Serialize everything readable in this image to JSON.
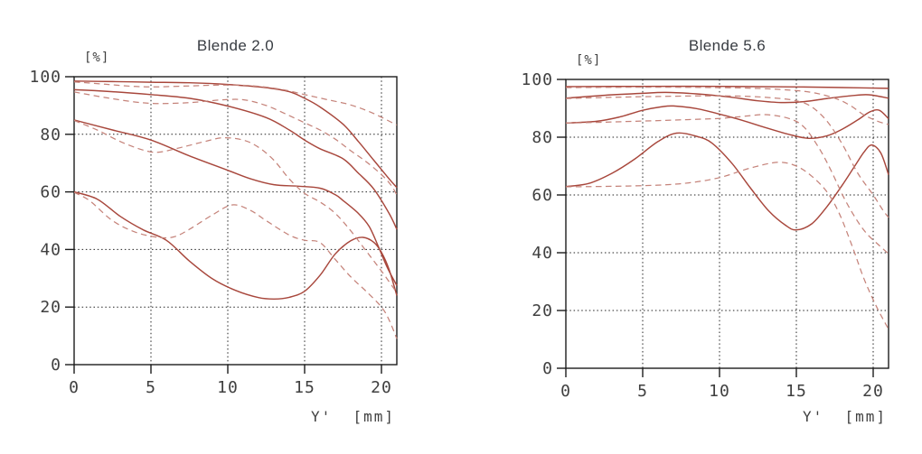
{
  "figure_name": "MTF diagrams",
  "colors": {
    "background": "#ffffff",
    "curve_solid": "#a8473c",
    "curve_dashed": "#c5837a",
    "axis": "#1c1c1c",
    "grid": "#222222",
    "tick_text": "#3f3f3f",
    "title_text": "#383c42"
  },
  "chart_data": [
    {
      "type": "line",
      "title": "Blende 2.0",
      "ylabel": "[%]",
      "xlabel": "Y'  [mm]",
      "xlim": [
        0,
        21
      ],
      "ylim": [
        0,
        100
      ],
      "xticks": [
        0,
        5,
        10,
        15,
        20
      ],
      "yticks": [
        0,
        20,
        40,
        60,
        80,
        100
      ],
      "grid": true,
      "legend": "none",
      "series": [
        {
          "name": "solid-1",
          "style": "solid",
          "points": [
            [
              0,
              98.5
            ],
            [
              2.5,
              98.3
            ],
            [
              5,
              98.1
            ],
            [
              7.5,
              97.9
            ],
            [
              10,
              97.3
            ],
            [
              12.5,
              96.2
            ],
            [
              14,
              94.8
            ],
            [
              15,
              92.5
            ],
            [
              16,
              89.5
            ],
            [
              17.5,
              83.5
            ],
            [
              18.5,
              77.5
            ],
            [
              19.5,
              71
            ],
            [
              20.5,
              64.5
            ],
            [
              21,
              61.5
            ]
          ]
        },
        {
          "name": "solid-2",
          "style": "solid",
          "points": [
            [
              0,
              95.5
            ],
            [
              2.5,
              94.8
            ],
            [
              5,
              93.8
            ],
            [
              7.5,
              92.5
            ],
            [
              10,
              89.8
            ],
            [
              12.5,
              85.8
            ],
            [
              14,
              81.5
            ],
            [
              15,
              78
            ],
            [
              16,
              75
            ],
            [
              17.5,
              71.5
            ],
            [
              18.5,
              66.5
            ],
            [
              19.5,
              61
            ],
            [
              20.5,
              52.5
            ],
            [
              21,
              47
            ]
          ]
        },
        {
          "name": "solid-3",
          "style": "solid",
          "points": [
            [
              0,
              85
            ],
            [
              2.5,
              81.5
            ],
            [
              5,
              78
            ],
            [
              7.5,
              72.5
            ],
            [
              10,
              67.5
            ],
            [
              11.5,
              64.5
            ],
            [
              13,
              62.5
            ],
            [
              14.5,
              62
            ],
            [
              16,
              61.3
            ],
            [
              17,
              59
            ],
            [
              17.5,
              57
            ],
            [
              18.5,
              52.5
            ],
            [
              19.2,
              48
            ],
            [
              19.8,
              41
            ],
            [
              20.4,
              33.5
            ],
            [
              21,
              27.5
            ]
          ]
        },
        {
          "name": "solid-4",
          "style": "solid",
          "points": [
            [
              0,
              60
            ],
            [
              1.5,
              57.5
            ],
            [
              3,
              51.5
            ],
            [
              4.5,
              46.8
            ],
            [
              6,
              43.2
            ],
            [
              7.5,
              36
            ],
            [
              9,
              29.8
            ],
            [
              10.5,
              25.8
            ],
            [
              12,
              23.3
            ],
            [
              13,
              22.8
            ],
            [
              14,
              23.4
            ],
            [
              15,
              25.5
            ],
            [
              16,
              31
            ],
            [
              17,
              38.5
            ],
            [
              18,
              43
            ],
            [
              18.8,
              44.2
            ],
            [
              19.5,
              42.5
            ],
            [
              20,
              39
            ],
            [
              20.5,
              33
            ],
            [
              21,
              24
            ]
          ]
        },
        {
          "name": "dashed-1",
          "style": "dashed",
          "points": [
            [
              0,
              98.2
            ],
            [
              2,
              97.4
            ],
            [
              4,
              96.6
            ],
            [
              5.5,
              96.5
            ],
            [
              7.5,
              96.8
            ],
            [
              9.5,
              97.1
            ],
            [
              11.5,
              96.9
            ],
            [
              13.5,
              95.6
            ],
            [
              15,
              93.8
            ],
            [
              16.5,
              92
            ],
            [
              18,
              90.2
            ],
            [
              19.5,
              87.2
            ],
            [
              21,
              83.2
            ]
          ]
        },
        {
          "name": "dashed-2",
          "style": "dashed",
          "points": [
            [
              0,
              94.7
            ],
            [
              2,
              92.8
            ],
            [
              4,
              91.2
            ],
            [
              5.5,
              90.7
            ],
            [
              7.5,
              91
            ],
            [
              9.5,
              91.9
            ],
            [
              11,
              92
            ],
            [
              12.5,
              90
            ],
            [
              14,
              86.5
            ],
            [
              15,
              84
            ],
            [
              16,
              81.5
            ],
            [
              17,
              78.3
            ],
            [
              18,
              74.3
            ],
            [
              19,
              70.5
            ],
            [
              20,
              66
            ],
            [
              20.6,
              62.5
            ],
            [
              21,
              59
            ]
          ]
        },
        {
          "name": "dashed-3",
          "style": "dashed",
          "points": [
            [
              0,
              84.8
            ],
            [
              1.5,
              81.5
            ],
            [
              3,
              77.5
            ],
            [
              4.5,
              74.5
            ],
            [
              5.5,
              73.8
            ],
            [
              7,
              75.5
            ],
            [
              8.5,
              77.5
            ],
            [
              9.7,
              78.8
            ],
            [
              11,
              78
            ],
            [
              12,
              75.5
            ],
            [
              13,
              71
            ],
            [
              14,
              64.5
            ],
            [
              15,
              59.5
            ],
            [
              16,
              56.5
            ],
            [
              17,
              52.5
            ],
            [
              18,
              46.5
            ],
            [
              19,
              39.5
            ],
            [
              20,
              32.5
            ],
            [
              21,
              25
            ]
          ]
        },
        {
          "name": "dashed-4",
          "style": "dashed",
          "points": [
            [
              0,
              59.8
            ],
            [
              1,
              57
            ],
            [
              2.5,
              50
            ],
            [
              4,
              46
            ],
            [
              5.5,
              44.2
            ],
            [
              6.5,
              44.4
            ],
            [
              7.5,
              47
            ],
            [
              9,
              52
            ],
            [
              10.3,
              55.5
            ],
            [
              11.5,
              53.5
            ],
            [
              12.5,
              50
            ],
            [
              14,
              45
            ],
            [
              15,
              43.2
            ],
            [
              16,
              42.4
            ],
            [
              17,
              36.5
            ],
            [
              18,
              30.5
            ],
            [
              19,
              25.5
            ],
            [
              20,
              20
            ],
            [
              20.5,
              15.5
            ],
            [
              21,
              9
            ]
          ]
        }
      ]
    },
    {
      "type": "line",
      "title": "Blende 5.6",
      "ylabel": "[%]",
      "xlabel": "Y'  [mm]",
      "xlim": [
        0,
        21
      ],
      "ylim": [
        0,
        100
      ],
      "xticks": [
        0,
        5,
        10,
        15,
        20
      ],
      "yticks": [
        0,
        20,
        40,
        60,
        80,
        100
      ],
      "grid": true,
      "legend": "none",
      "series": [
        {
          "name": "solid-1",
          "style": "solid",
          "points": [
            [
              0,
              97.5
            ],
            [
              5,
              97.6
            ],
            [
              10,
              97.6
            ],
            [
              15,
              97.4
            ],
            [
              18,
              97.2
            ],
            [
              21,
              96.9
            ]
          ]
        },
        {
          "name": "solid-2",
          "style": "solid",
          "points": [
            [
              0,
              93.5
            ],
            [
              2.5,
              94.5
            ],
            [
              5,
              95.2
            ],
            [
              6.5,
              95.5
            ],
            [
              8.5,
              95
            ],
            [
              10.5,
              94
            ],
            [
              12.5,
              92.6
            ],
            [
              14,
              92
            ],
            [
              15.5,
              92.3
            ],
            [
              17,
              93.4
            ],
            [
              18.5,
              94.3
            ],
            [
              19.7,
              94.7
            ],
            [
              21,
              93.5
            ]
          ]
        },
        {
          "name": "solid-3",
          "style": "solid",
          "points": [
            [
              0,
              84.9
            ],
            [
              2,
              85.5
            ],
            [
              3.5,
              87
            ],
            [
              5,
              89.3
            ],
            [
              6.2,
              90.5
            ],
            [
              7,
              90.8
            ],
            [
              8.5,
              89.9
            ],
            [
              10,
              88
            ],
            [
              11.5,
              85.8
            ],
            [
              13,
              83.3
            ],
            [
              14.5,
              81
            ],
            [
              15.8,
              79.6
            ],
            [
              17,
              80.5
            ],
            [
              18,
              82.8
            ],
            [
              19,
              86
            ],
            [
              19.8,
              88.8
            ],
            [
              20.4,
              89.3
            ],
            [
              21,
              86.4
            ]
          ]
        },
        {
          "name": "solid-4",
          "style": "solid",
          "points": [
            [
              0,
              62.9
            ],
            [
              1.5,
              64
            ],
            [
              3,
              67.5
            ],
            [
              4.5,
              72.5
            ],
            [
              6,
              78.5
            ],
            [
              7.2,
              81.4
            ],
            [
              8.5,
              80.3
            ],
            [
              9.5,
              78
            ],
            [
              10.8,
              71
            ],
            [
              12,
              62.5
            ],
            [
              13.2,
              54.5
            ],
            [
              14.3,
              49.5
            ],
            [
              15,
              47.9
            ],
            [
              16,
              50
            ],
            [
              17,
              56
            ],
            [
              18,
              63.5
            ],
            [
              18.8,
              70
            ],
            [
              19.4,
              74.8
            ],
            [
              19.9,
              77.3
            ],
            [
              20.5,
              74.5
            ],
            [
              21,
              67
            ]
          ]
        },
        {
          "name": "dashed-1",
          "style": "dashed",
          "points": [
            [
              0,
              97.2
            ],
            [
              6,
              97.3
            ],
            [
              11,
              97.1
            ],
            [
              14,
              96.5
            ],
            [
              16,
              95.5
            ],
            [
              17.5,
              93.5
            ],
            [
              18.5,
              91
            ],
            [
              19.4,
              87.7
            ],
            [
              20.3,
              85.5
            ],
            [
              21,
              84.4
            ]
          ]
        },
        {
          "name": "dashed-2",
          "style": "dashed",
          "points": [
            [
              0,
              93.4
            ],
            [
              3,
              93.8
            ],
            [
              6,
              94.1
            ],
            [
              9,
              94.3
            ],
            [
              11.5,
              94.2
            ],
            [
              13.5,
              93.6
            ],
            [
              15,
              92.6
            ],
            [
              16,
              90.5
            ],
            [
              17,
              85.5
            ],
            [
              18,
              77.5
            ],
            [
              19,
              67.5
            ],
            [
              20,
              60
            ],
            [
              20.6,
              55
            ],
            [
              21,
              52.2
            ]
          ]
        },
        {
          "name": "dashed-3",
          "style": "dashed",
          "points": [
            [
              0,
              84.9
            ],
            [
              2.5,
              85.2
            ],
            [
              5,
              85.6
            ],
            [
              7.5,
              86
            ],
            [
              10,
              86.5
            ],
            [
              11.5,
              87.2
            ],
            [
              13,
              87.8
            ],
            [
              14.5,
              86.5
            ],
            [
              15.5,
              83.5
            ],
            [
              16.5,
              76
            ],
            [
              17.3,
              68
            ],
            [
              18.1,
              59
            ],
            [
              18.9,
              51.6
            ],
            [
              19.6,
              46.5
            ],
            [
              20.4,
              42.5
            ],
            [
              21,
              39.6
            ]
          ]
        },
        {
          "name": "dashed-4",
          "style": "dashed",
          "points": [
            [
              0,
              62.8
            ],
            [
              3,
              63
            ],
            [
              6,
              63.4
            ],
            [
              8,
              64.2
            ],
            [
              10,
              66
            ],
            [
              12,
              69.3
            ],
            [
              13.8,
              71.3
            ],
            [
              15,
              70
            ],
            [
              16,
              66.5
            ],
            [
              17,
              61
            ],
            [
              17.8,
              53.5
            ],
            [
              18.65,
              42
            ],
            [
              19.4,
              31
            ],
            [
              20.2,
              21.5
            ],
            [
              21,
              13.5
            ]
          ]
        }
      ]
    }
  ]
}
